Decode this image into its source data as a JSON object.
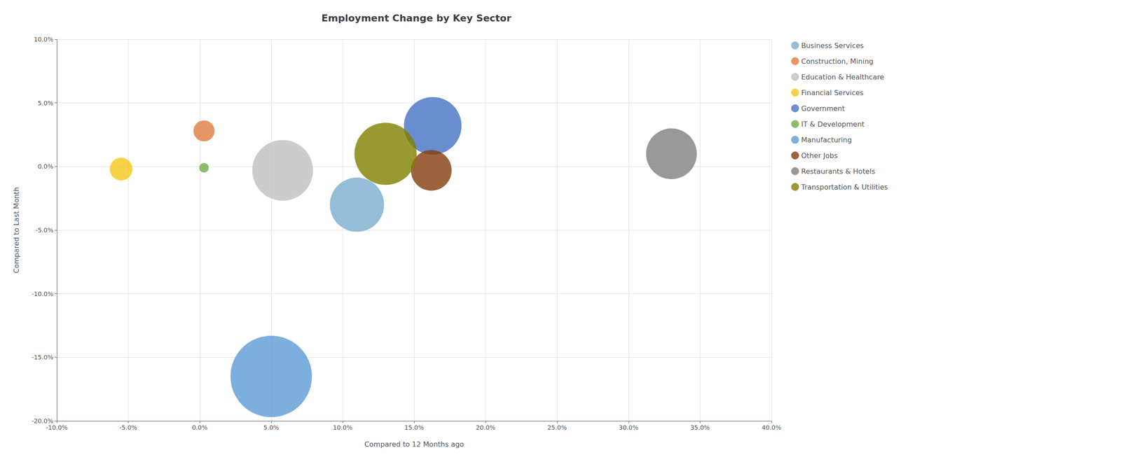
{
  "chart_data": {
    "type": "scatter",
    "title": "Employment Change by Key Sector",
    "xlabel": "Compared to 12 Months ago",
    "ylabel": "Compared to Last Month",
    "xlim": [
      -0.1,
      0.4
    ],
    "ylim": [
      -0.2,
      0.1
    ],
    "xticks": [
      {
        "value": -0.1,
        "label": "-10.0%"
      },
      {
        "value": -0.05,
        "label": "-5.0%"
      },
      {
        "value": 0.0,
        "label": "0.0%"
      },
      {
        "value": 0.05,
        "label": "5.0%"
      },
      {
        "value": 0.1,
        "label": "10.0%"
      },
      {
        "value": 0.15,
        "label": "15.0%"
      },
      {
        "value": 0.2,
        "label": "20.0%"
      },
      {
        "value": 0.25,
        "label": "25.0%"
      },
      {
        "value": 0.3,
        "label": "30.0%"
      },
      {
        "value": 0.35,
        "label": "35.0%"
      },
      {
        "value": 0.4,
        "label": "40.0%"
      }
    ],
    "yticks": [
      {
        "value": -0.2,
        "label": "-20.0%"
      },
      {
        "value": -0.15,
        "label": "-15.0%"
      },
      {
        "value": -0.1,
        "label": "-10.0%"
      },
      {
        "value": -0.05,
        "label": "-5.0%"
      },
      {
        "value": 0.0,
        "label": "0.0%"
      },
      {
        "value": 0.05,
        "label": "5.0%"
      },
      {
        "value": 0.1,
        "label": "10.0%"
      }
    ],
    "grid": true,
    "legend": "right",
    "series": [
      {
        "name": "Business Services",
        "x": [
          0.11
        ],
        "y": [
          -0.03
        ],
        "size": [
          8000
        ],
        "color": "#7AADCD"
      },
      {
        "name": "Construction, Mining",
        "x": [
          0.003
        ],
        "y": [
          0.028
        ],
        "size": [
          1200
        ],
        "color": "#E07B3F"
      },
      {
        "name": "Education & Healthcare",
        "x": [
          0.058
        ],
        "y": [
          -0.003
        ],
        "size": [
          10000
        ],
        "color": "#BFBFBF"
      },
      {
        "name": "Financial Services",
        "x": [
          -0.055
        ],
        "y": [
          -0.002
        ],
        "size": [
          1400
        ],
        "color": "#F5C518"
      },
      {
        "name": "Government",
        "x": [
          0.163
        ],
        "y": [
          0.032
        ],
        "size": [
          9000
        ],
        "color": "#4472C4"
      },
      {
        "name": "IT & Development",
        "x": [
          0.003
        ],
        "y": [
          -0.001
        ],
        "size": [
          250
        ],
        "color": "#70AD47"
      },
      {
        "name": "Manufacturing",
        "x": [
          0.05
        ],
        "y": [
          -0.165
        ],
        "size": [
          18000
        ],
        "color": "#5B9BD5"
      },
      {
        "name": "Other Jobs",
        "x": [
          0.162
        ],
        "y": [
          -0.003
        ],
        "size": [
          4500
        ],
        "color": "#843C0C"
      },
      {
        "name": "Restaurants & Hotels",
        "x": [
          0.33
        ],
        "y": [
          0.01
        ],
        "size": [
          7000
        ],
        "color": "#808080"
      },
      {
        "name": "Transportation & Utilities",
        "x": [
          0.13
        ],
        "y": [
          0.01
        ],
        "size": [
          10500
        ],
        "color": "#7F7F00"
      }
    ]
  }
}
